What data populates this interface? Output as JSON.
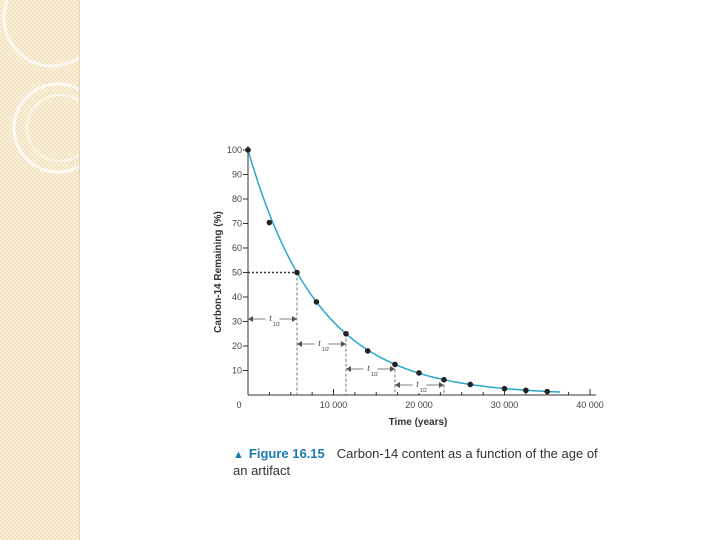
{
  "chart_data": {
    "type": "scatter",
    "x": [
      0,
      2500,
      5730,
      8000,
      11460,
      14000,
      17190,
      20000,
      22920,
      26000,
      30000,
      32500,
      35000
    ],
    "y": [
      100,
      70.4,
      50,
      38,
      25,
      18,
      12.5,
      9,
      6.25,
      4.3,
      2.6,
      1.9,
      1.4
    ],
    "fit_curve": "exponential decay, half-life 5730 years",
    "xlabel": "Time (years)",
    "ylabel": "Carbon-14 Remaining (%)",
    "xlim": [
      0,
      40000
    ],
    "ylim": [
      0,
      100
    ],
    "xticks": [
      0,
      10000,
      20000,
      30000,
      40000
    ],
    "xtick_labels": [
      "0",
      "10 000",
      "20 000",
      "30 000",
      "40 000"
    ],
    "yticks": [
      10,
      20,
      30,
      40,
      50,
      60,
      70,
      80,
      90,
      100
    ],
    "ytick_labels": [
      "10",
      "20",
      "30",
      "40",
      "50",
      "60",
      "70",
      "80",
      "90",
      "100"
    ],
    "half_life_years": 5730,
    "half_life_label": "t",
    "half_life_subscript": "1/2",
    "grid": false,
    "curve_color": "#2aa7c9",
    "point_color": "#222222"
  },
  "caption": {
    "figure_label": "Figure 16.15",
    "text": "Carbon-14 content as a function of the age of an artifact"
  }
}
